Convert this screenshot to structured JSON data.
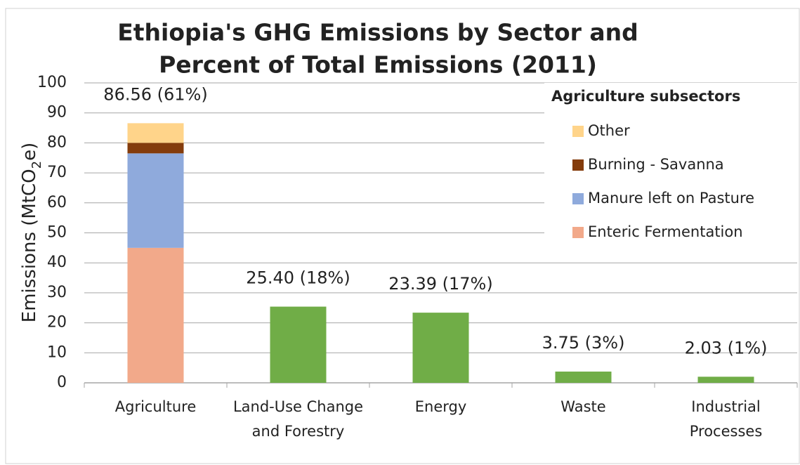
{
  "chart_data": {
    "type": "stacked_bar",
    "title": [
      "Ethiopia's GHG Emissions by Sector and",
      "Percent of Total Emissions (2011)"
    ],
    "ylabel": [
      "Emissions (MtCO",
      "2",
      "e)"
    ],
    "categories": [
      [
        "Agriculture"
      ],
      [
        "Land-Use Change",
        "and Forestry"
      ],
      [
        "Energy"
      ],
      [
        "Waste"
      ],
      [
        "Industrial",
        "Processes"
      ]
    ],
    "series": [
      {
        "name": "Enteric Fermentation",
        "color": "#f2a98a",
        "values": [
          45,
          null,
          null,
          null,
          null
        ]
      },
      {
        "name": "Manure left on Pasture",
        "color": "#8faadc",
        "values": [
          31.5,
          null,
          null,
          null,
          null
        ]
      },
      {
        "name": "Burning - Savanna",
        "color": "#843c0c",
        "values": [
          3.5,
          null,
          null,
          null,
          null
        ]
      },
      {
        "name": "Other",
        "color": "#ffd48a",
        "values": [
          6.56,
          null,
          null,
          null,
          null
        ]
      },
      {
        "color": "#70ad47",
        "values": [
          null,
          25.4,
          23.39,
          3.75,
          2.03
        ]
      }
    ],
    "totals": [
      86.56,
      25.4,
      23.39,
      3.75,
      2.03
    ],
    "total_labels": [
      "86.56 (61%)",
      "25.40 (18%)",
      "23.39 (17%)",
      "3.75 (3%)",
      "2.03 (1%)"
    ],
    "legend_title": "Agriculture subsectors",
    "legend": "upper right",
    "ylim": [
      0,
      100
    ],
    "yticks": [
      0,
      10,
      20,
      30,
      40,
      50,
      60,
      70,
      80,
      90,
      100
    ],
    "grid": true
  }
}
